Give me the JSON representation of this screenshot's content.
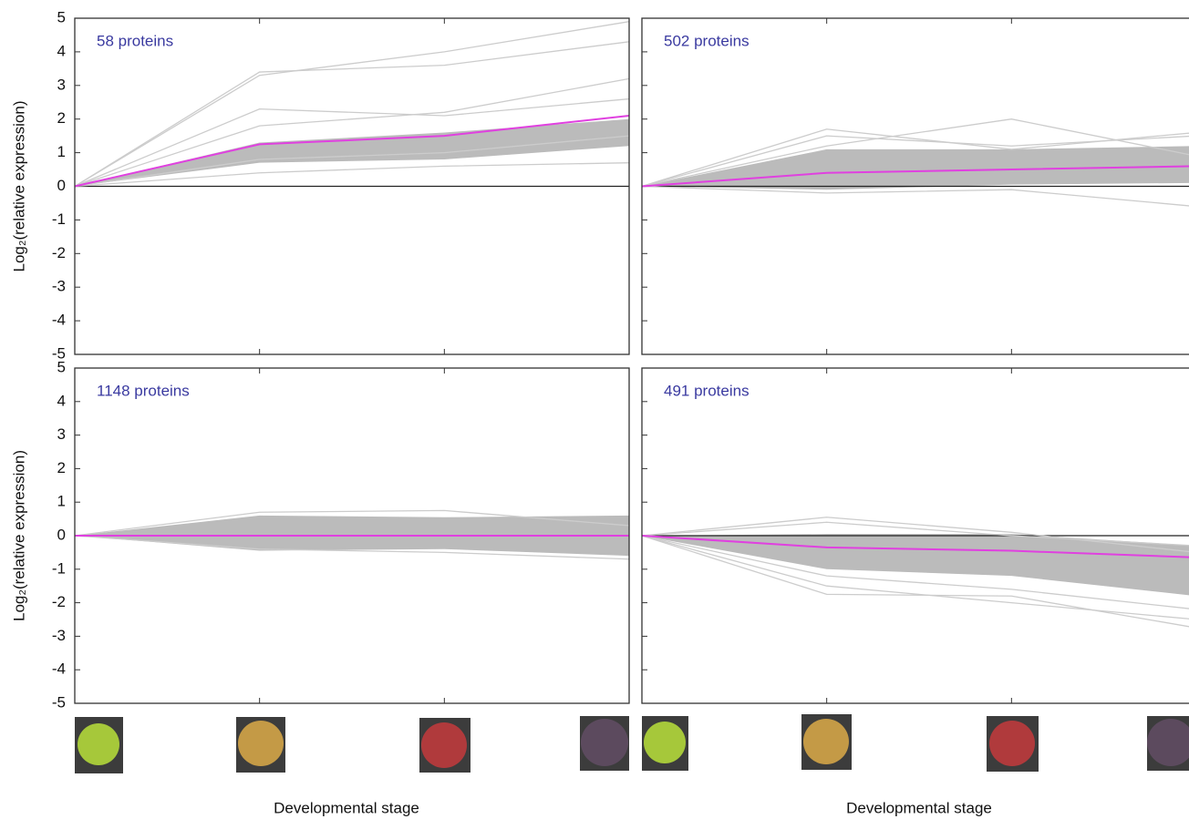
{
  "chart_data": [
    {
      "type": "line",
      "annotation": "58 proteins",
      "ylabel": "Log₂(relative expression)",
      "categories": [
        null,
        null,
        null,
        null
      ],
      "ylim": [
        -5,
        5
      ],
      "yticks": [
        -5,
        -4,
        -3,
        -2,
        -1,
        0,
        1,
        2,
        3,
        4,
        5
      ],
      "band": {
        "color": "#bbbbbb",
        "upper": [
          0,
          1.3,
          1.6,
          2.0
        ],
        "lower": [
          0,
          0.7,
          0.8,
          1.2
        ]
      },
      "series": [
        {
          "color": "#cccccc",
          "values": [
            0,
            3.3,
            4.0,
            4.9
          ]
        },
        {
          "color": "#cccccc",
          "values": [
            0,
            3.4,
            3.6,
            4.3
          ]
        },
        {
          "color": "#cccccc",
          "values": [
            0,
            2.3,
            2.1,
            2.6
          ]
        },
        {
          "color": "#cccccc",
          "values": [
            0,
            1.8,
            2.2,
            3.2
          ]
        },
        {
          "color": "#cccccc",
          "values": [
            0,
            0.8,
            1.0,
            1.5
          ]
        },
        {
          "color": "#cccccc",
          "values": [
            0,
            0.4,
            0.6,
            0.7
          ]
        },
        {
          "color": "#e040e0",
          "values": [
            0,
            1.25,
            1.5,
            2.1
          ]
        }
      ]
    },
    {
      "type": "line",
      "annotation": "502 proteins",
      "categories": [
        null,
        null,
        null,
        null
      ],
      "ylim": [
        -5,
        5
      ],
      "band": {
        "color": "#bbbbbb",
        "upper": [
          0,
          1.1,
          1.1,
          1.2
        ],
        "lower": [
          0,
          -0.1,
          0.05,
          0.1
        ]
      },
      "series": [
        {
          "color": "#cccccc",
          "values": [
            0,
            1.7,
            1.1,
            1.6
          ]
        },
        {
          "color": "#cccccc",
          "values": [
            0,
            1.2,
            2.0,
            0.9
          ]
        },
        {
          "color": "#cccccc",
          "values": [
            0,
            1.5,
            1.2,
            1.5
          ]
        },
        {
          "color": "#cccccc",
          "values": [
            0,
            -0.2,
            -0.1,
            -0.6
          ]
        },
        {
          "color": "#e040e0",
          "values": [
            0,
            0.4,
            0.5,
            0.6
          ]
        }
      ]
    },
    {
      "type": "line",
      "annotation": "1148 proteins",
      "ylabel": "Log₂(relative expression)",
      "xlabel": "Developmental stage",
      "categories": [
        null,
        null,
        null,
        null
      ],
      "ylim": [
        -5,
        5
      ],
      "yticks": [
        -5,
        -4,
        -3,
        -2,
        -1,
        0,
        1,
        2,
        3,
        4,
        5
      ],
      "band": {
        "color": "#bbbbbb",
        "upper": [
          0,
          0.6,
          0.55,
          0.6
        ],
        "lower": [
          0,
          -0.45,
          -0.4,
          -0.6
        ]
      },
      "series": [
        {
          "color": "#cccccc",
          "values": [
            0,
            0.7,
            0.75,
            0.3
          ]
        },
        {
          "color": "#cccccc",
          "values": [
            0,
            -0.4,
            -0.5,
            -0.7
          ]
        },
        {
          "color": "#e040e0",
          "values": [
            0,
            0,
            0,
            0
          ]
        }
      ]
    },
    {
      "type": "line",
      "annotation": "491 proteins",
      "xlabel": "Developmental stage",
      "categories": [
        null,
        null,
        null,
        null
      ],
      "ylim": [
        -5,
        5
      ],
      "band": {
        "color": "#bbbbbb",
        "upper": [
          0,
          0.05,
          0.05,
          -0.3
        ],
        "lower": [
          0,
          -1.0,
          -1.2,
          -1.8
        ]
      },
      "series": [
        {
          "color": "#cccccc",
          "values": [
            0,
            0.55,
            0.1,
            -0.5
          ]
        },
        {
          "color": "#cccccc",
          "values": [
            0,
            0.4,
            0,
            -0.3
          ]
        },
        {
          "color": "#cccccc",
          "values": [
            0,
            -1.2,
            -1.6,
            -2.2
          ]
        },
        {
          "color": "#cccccc",
          "values": [
            0,
            -1.5,
            -2.0,
            -2.5
          ]
        },
        {
          "color": "#cccccc",
          "values": [
            0,
            -1.75,
            -1.8,
            -2.75
          ]
        },
        {
          "color": "#e040e0",
          "values": [
            0,
            -0.35,
            -0.45,
            -0.65
          ]
        }
      ]
    }
  ]
}
